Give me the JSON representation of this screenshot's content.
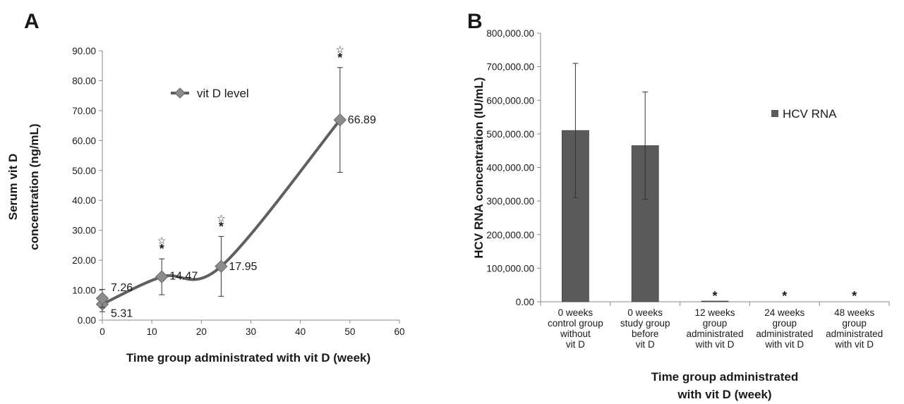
{
  "chart_data": [
    {
      "panel": "A",
      "type": "line",
      "xlabel": "Time group administrated with vit D (week)",
      "ylabel_lines": [
        "Serum vit D",
        "concentration (ng/mL)"
      ],
      "xlim": [
        0,
        60
      ],
      "ylim": [
        0,
        90
      ],
      "x_ticks": [
        "0",
        "10",
        "20",
        "30",
        "40",
        "50",
        "60"
      ],
      "y_ticks": [
        "0.00",
        "10.00",
        "20.00",
        "30.00",
        "40.00",
        "50.00",
        "60.00",
        "70.00",
        "80.00",
        "90.00"
      ],
      "legend": {
        "label": "vit D level",
        "position": "top-center"
      },
      "series": [
        {
          "name": "vit D level",
          "color": "#5f5f5f",
          "points": [
            {
              "x": 0,
              "y": 5.31,
              "label": "5.31",
              "err": 2.5,
              "sig": false
            },
            {
              "x": 0,
              "y": 7.26,
              "label": "7.26",
              "err": 3.0,
              "sig": false
            },
            {
              "x": 12,
              "y": 14.47,
              "label": "14.47",
              "err": 6.0,
              "sig": true
            },
            {
              "x": 24,
              "y": 17.95,
              "label": "17.95",
              "err": 10.0,
              "sig": true
            },
            {
              "x": 48,
              "y": 66.89,
              "label": "66.89",
              "err": 17.5,
              "sig": true
            }
          ]
        }
      ],
      "annotations": {
        "filled_star": "*",
        "open_star": "☆"
      }
    },
    {
      "panel": "B",
      "type": "bar",
      "xlabel_lines": [
        "Time group administrated",
        "with vit D (week)"
      ],
      "ylabel": "HCV RNA concentration (IU/mL)",
      "ylim": [
        0,
        800000
      ],
      "y_ticks": [
        "0.00",
        "100,000.00",
        "200,000.00",
        "300,000.00",
        "400,000.00",
        "500,000.00",
        "600,000.00",
        "700,000.00",
        "800,000.00"
      ],
      "categories": [
        [
          "0 weeks",
          "control group",
          "without",
          "vit D"
        ],
        [
          "0 weeks",
          "study group",
          "before",
          "vit D"
        ],
        [
          "12 weeks",
          "group",
          "administrated",
          "with vit D"
        ],
        [
          "24 weeks",
          "group",
          "administrated",
          "with vit D"
        ],
        [
          "48 weeks",
          "group",
          "administrated",
          "with vit D"
        ]
      ],
      "series": [
        {
          "name": "HCV RNA",
          "color": "#5a5a5a",
          "values": [
            510000,
            465000,
            2000,
            0,
            0
          ],
          "err": [
            200000,
            160000,
            0,
            0,
            0
          ],
          "sig": [
            false,
            false,
            true,
            true,
            true
          ]
        }
      ],
      "legend": {
        "label": "HCV RNA",
        "position": "right"
      },
      "annotations": {
        "filled_star": "*"
      }
    }
  ]
}
